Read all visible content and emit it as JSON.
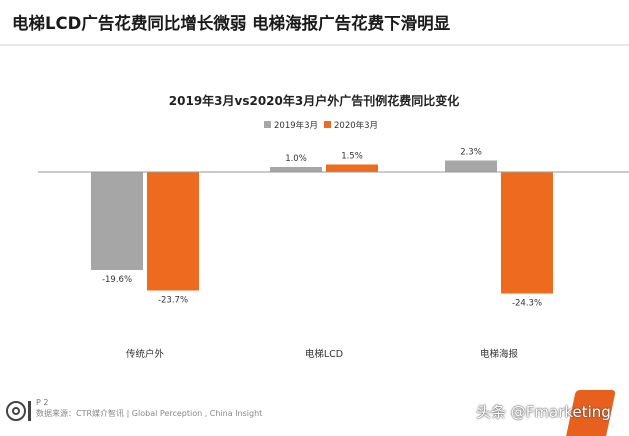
{
  "page": {
    "headline": "电梯LCD广告花费同比增长微弱 电梯海报广告花费下滑明显",
    "page_number": "P 2",
    "source": "数据来源：CTR媒介智讯 | Global Perception , China Insight",
    "watermark": "头条 @Fmarketing"
  },
  "colors": {
    "series_2019": "#a6a6a6",
    "series_2020": "#ee6a1f",
    "baseline": "#9a9a9a",
    "text": "#333333"
  },
  "chart_data": {
    "type": "bar",
    "title": "2019年3月vs2020年3月户外广告刊例花费同比变化",
    "categories": [
      "传统户外",
      "电梯LCD",
      "电梯海报"
    ],
    "series": [
      {
        "name": "2019年3月",
        "values": [
          -19.6,
          1.0,
          2.3
        ],
        "labels": [
          "-19.6%",
          "1.0%",
          "2.3%"
        ]
      },
      {
        "name": "2020年3月",
        "values": [
          -23.7,
          1.5,
          -24.3
        ],
        "labels": [
          "-23.7%",
          "1.5%",
          "-24.3%"
        ]
      }
    ],
    "ylim": [
      -26,
      6
    ],
    "legend_position": "top-center",
    "grid": false
  }
}
